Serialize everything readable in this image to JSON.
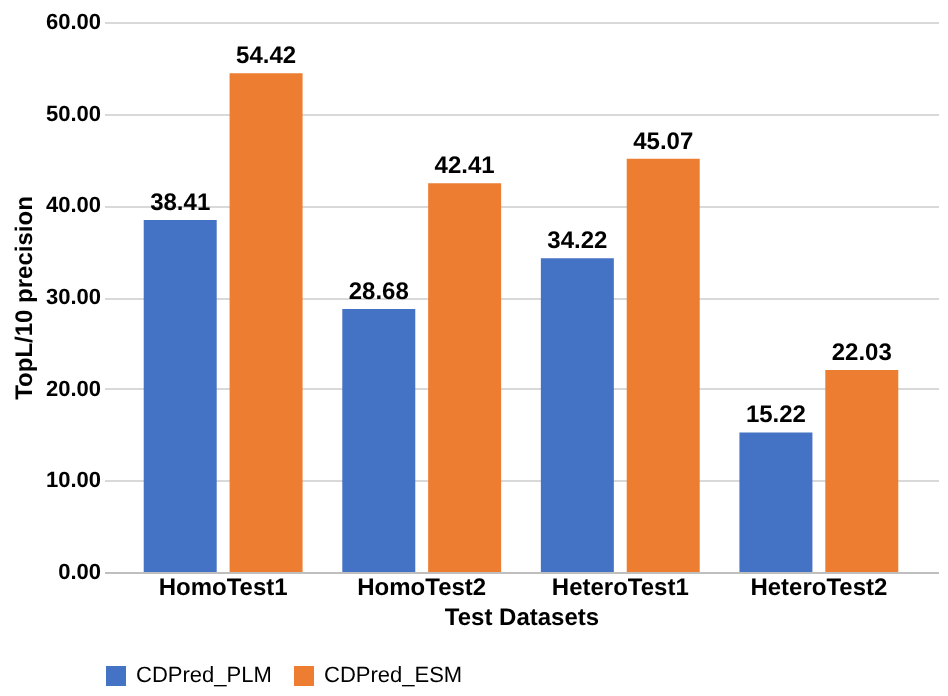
{
  "chart_data": {
    "type": "bar",
    "categories": [
      "HomoTest1",
      "HomoTest2",
      "HeteroTest1",
      "HeteroTest2"
    ],
    "series": [
      {
        "name": "CDPred_PLM",
        "color": "#4472c4",
        "values": [
          38.41,
          28.68,
          34.22,
          15.22
        ]
      },
      {
        "name": "CDPred_ESM",
        "color": "#ed7d31",
        "values": [
          54.42,
          42.41,
          45.07,
          22.03
        ]
      }
    ],
    "xlabel": "Test Datasets",
    "ylabel": "TopL/10 precision",
    "ylim": [
      0,
      60
    ],
    "yticks": [
      {
        "value": 0,
        "label": "0.00"
      },
      {
        "value": 10,
        "label": "10.00"
      },
      {
        "value": 20,
        "label": "20.00"
      },
      {
        "value": 30,
        "label": "30.00"
      },
      {
        "value": 40,
        "label": "40.00"
      },
      {
        "value": 50,
        "label": "50.00"
      },
      {
        "value": 60,
        "label": "60.00"
      }
    ],
    "grid": "y",
    "legend": "bottom",
    "data_labels": true
  }
}
